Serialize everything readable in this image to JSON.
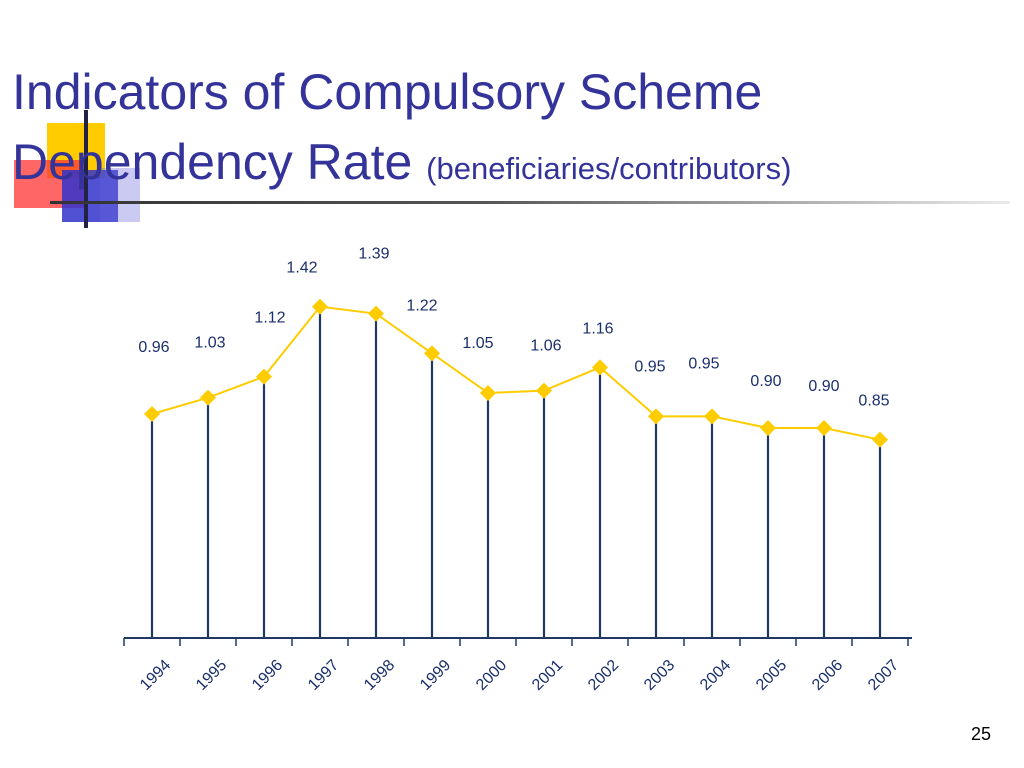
{
  "slide": {
    "title_line1": "Indicators of Compulsory Scheme",
    "title_line2_main": "Dependency Rate ",
    "title_line2_sub": "(beneficiaries/contributors)",
    "page_number": "25"
  },
  "colors": {
    "title": "#333399",
    "line": "#ffcc00",
    "marker": "#ffcc00",
    "drop_line": "#1f3864",
    "axis": "#1f3864",
    "labels": "#1a2f6b"
  },
  "chart_data": {
    "type": "line",
    "title": "",
    "xlabel": "",
    "ylabel": "",
    "categories": [
      "1994",
      "1995",
      "1996",
      "1997",
      "1998",
      "1999",
      "2000",
      "2001",
      "2002",
      "2003",
      "2004",
      "2005",
      "2006",
      "2007"
    ],
    "values": [
      0.96,
      1.03,
      1.12,
      1.42,
      1.39,
      1.22,
      1.05,
      1.06,
      1.16,
      0.95,
      0.95,
      0.9,
      0.9,
      0.85
    ],
    "value_labels": [
      "0.96",
      "1.03",
      "1.12",
      "1.42",
      "1.39",
      "1.22",
      "1.05",
      "1.06",
      "1.16",
      "0.95",
      "0.95",
      "0.90",
      "0.90",
      "0.85"
    ],
    "ylim": [
      0,
      1.8
    ],
    "grid": false,
    "legend": "none",
    "drop_lines": true,
    "marker": "diamond"
  }
}
